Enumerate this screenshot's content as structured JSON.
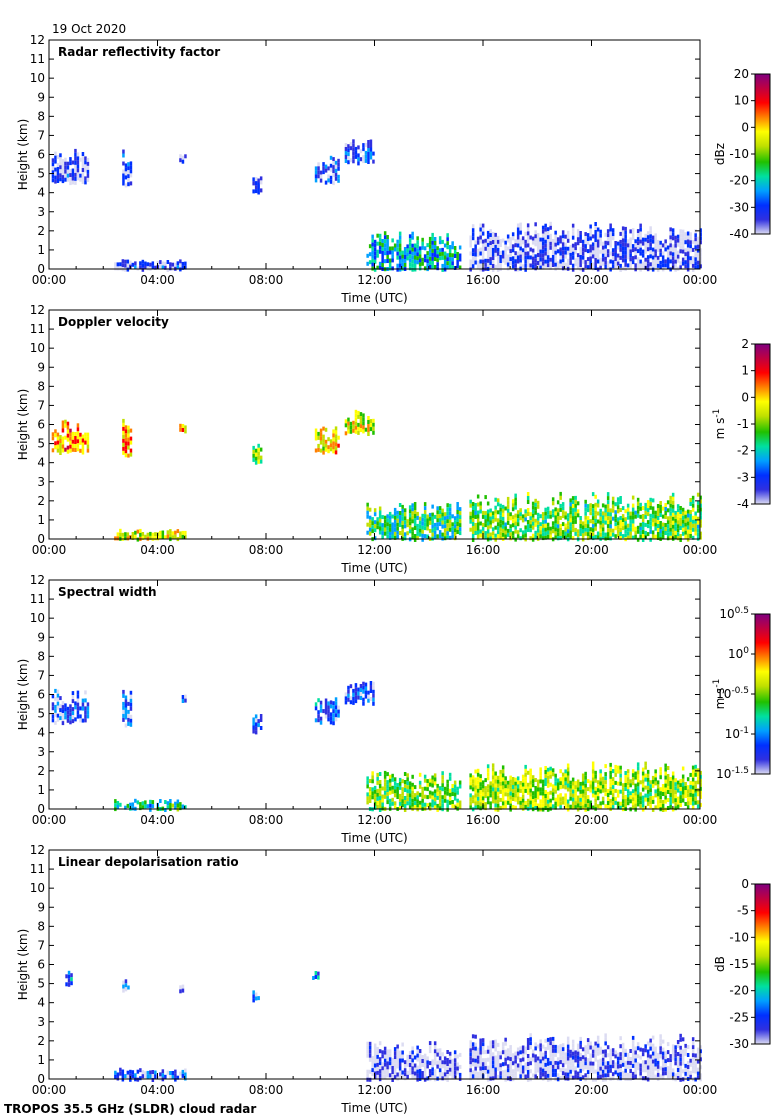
{
  "date_label": "19 Oct 2020",
  "footer": "TROPOS 35.5 GHz (SLDR) cloud radar",
  "chart_data": [
    {
      "type": "heatmap",
      "title": "Radar reflectivity factor",
      "xlabel": "Time (UTC)",
      "ylabel": "Height (km)",
      "xticks": [
        "00:00",
        "04:00",
        "08:00",
        "12:00",
        "16:00",
        "20:00",
        "00:00"
      ],
      "xlim_hours": [
        0,
        24
      ],
      "ylim": [
        0,
        12
      ],
      "yticks": [
        "0",
        "1",
        "2",
        "3",
        "4",
        "5",
        "6",
        "7",
        "8",
        "9",
        "10",
        "11",
        "12"
      ],
      "colorbar": {
        "label": "dBz",
        "range": [
          -40,
          20
        ],
        "ticks": [
          "20",
          "10",
          "0",
          "-10",
          "-20",
          "-30",
          "-40"
        ]
      },
      "colormap": [
        "#dcdcf2",
        "#3030e0",
        "#0030ff",
        "#00a0ff",
        "#00e0a0",
        "#20c000",
        "#c0e000",
        "#ffff00",
        "#ff8000",
        "#ff0000",
        "#c00040",
        "#800080"
      ],
      "echoes": [
        {
          "t": [
            0.1,
            1.4
          ],
          "h": [
            4.6,
            6.3
          ],
          "v": -33
        },
        {
          "t": [
            2.7,
            3.0
          ],
          "h": [
            4.4,
            6.3
          ],
          "v": -32
        },
        {
          "t": [
            4.8,
            5.0
          ],
          "h": [
            5.7,
            6.1
          ],
          "v": -33
        },
        {
          "t": [
            7.5,
            7.8
          ],
          "h": [
            4.1,
            5.2
          ],
          "v": -30
        },
        {
          "t": [
            9.8,
            10.7
          ],
          "h": [
            4.6,
            6.0
          ],
          "v": -30
        },
        {
          "t": [
            10.9,
            12.0
          ],
          "h": [
            5.6,
            6.8
          ],
          "v": -30
        },
        {
          "t": [
            2.4,
            5.0
          ],
          "h": [
            0.05,
            0.55
          ],
          "v": -32
        },
        {
          "t": [
            11.7,
            15.2
          ],
          "h": [
            0.05,
            2.0
          ],
          "v": -20
        },
        {
          "t": [
            15.5,
            24.0
          ],
          "h": [
            0.05,
            2.5
          ],
          "v": -34
        }
      ]
    },
    {
      "type": "heatmap",
      "title": "Doppler velocity",
      "xlabel": "Time (UTC)",
      "ylabel": "Height (km)",
      "xticks": [
        "00:00",
        "04:00",
        "08:00",
        "12:00",
        "16:00",
        "20:00",
        "00:00"
      ],
      "xlim_hours": [
        0,
        24
      ],
      "ylim": [
        0,
        12
      ],
      "yticks": [
        "0",
        "1",
        "2",
        "3",
        "4",
        "5",
        "6",
        "7",
        "8",
        "9",
        "10",
        "11",
        "12"
      ],
      "colorbar": {
        "label": "m s-1",
        "range": [
          -4,
          2
        ],
        "ticks": [
          "2",
          "1",
          "0",
          "-1",
          "-2",
          "-3",
          "-4"
        ]
      },
      "colormap": [
        "#dcdcf2",
        "#3030e0",
        "#0030ff",
        "#00a0ff",
        "#00e0a0",
        "#20c000",
        "#c0e000",
        "#ffff00",
        "#ff8000",
        "#ff0000",
        "#c00040",
        "#800080"
      ],
      "echoes": [
        {
          "t": [
            0.1,
            1.4
          ],
          "h": [
            4.6,
            6.3
          ],
          "v": 0.2
        },
        {
          "t": [
            2.7,
            3.0
          ],
          "h": [
            4.4,
            6.3
          ],
          "v": 0.0
        },
        {
          "t": [
            4.8,
            5.0
          ],
          "h": [
            5.7,
            6.1
          ],
          "v": 0.1
        },
        {
          "t": [
            7.5,
            7.8
          ],
          "h": [
            4.1,
            5.2
          ],
          "v": -1.0
        },
        {
          "t": [
            9.8,
            10.7
          ],
          "h": [
            4.6,
            6.0
          ],
          "v": -0.3
        },
        {
          "t": [
            10.9,
            12.0
          ],
          "h": [
            5.6,
            6.8
          ],
          "v": -0.6
        },
        {
          "t": [
            2.4,
            5.0
          ],
          "h": [
            0.05,
            0.55
          ],
          "v": -0.5
        },
        {
          "t": [
            11.7,
            15.2
          ],
          "h": [
            0.05,
            2.0
          ],
          "v": -1.5
        },
        {
          "t": [
            15.5,
            24.0
          ],
          "h": [
            0.05,
            2.5
          ],
          "v": -1.2
        }
      ]
    },
    {
      "type": "heatmap",
      "title": "Spectral width",
      "xlabel": "Time (UTC)",
      "ylabel": "Height (km)",
      "xticks": [
        "00:00",
        "04:00",
        "08:00",
        "12:00",
        "16:00",
        "20:00",
        "00:00"
      ],
      "xlim_hours": [
        0,
        24
      ],
      "ylim": [
        0,
        12
      ],
      "yticks": [
        "0",
        "1",
        "2",
        "3",
        "4",
        "5",
        "6",
        "7",
        "8",
        "9",
        "10",
        "11",
        "12"
      ],
      "colorbar": {
        "label": "m s-1",
        "range": [
          -1.5,
          0.5
        ],
        "log_base": 10,
        "ticks": [
          "10^0.5",
          "10^0",
          "10^-0.5",
          "10^-1",
          "10^-1.5"
        ]
      },
      "colormap": [
        "#dcdcf2",
        "#3030e0",
        "#0030ff",
        "#00a0ff",
        "#00e0a0",
        "#20c000",
        "#c0e000",
        "#ffff00",
        "#ff8000",
        "#ff0000",
        "#c00040",
        "#800080"
      ],
      "echoes": [
        {
          "t": [
            0.1,
            1.4
          ],
          "h": [
            4.6,
            6.3
          ],
          "v": -1.15
        },
        {
          "t": [
            2.7,
            3.0
          ],
          "h": [
            4.4,
            6.3
          ],
          "v": -1.15
        },
        {
          "t": [
            4.8,
            5.0
          ],
          "h": [
            5.7,
            6.1
          ],
          "v": -1.15
        },
        {
          "t": [
            7.5,
            7.8
          ],
          "h": [
            4.1,
            5.2
          ],
          "v": -1.1
        },
        {
          "t": [
            9.8,
            10.7
          ],
          "h": [
            4.6,
            6.0
          ],
          "v": -1.1
        },
        {
          "t": [
            10.9,
            12.0
          ],
          "h": [
            5.6,
            6.8
          ],
          "v": -1.15
        },
        {
          "t": [
            2.4,
            5.0
          ],
          "h": [
            0.05,
            0.55
          ],
          "v": -0.75
        },
        {
          "t": [
            11.7,
            15.2
          ],
          "h": [
            0.05,
            2.0
          ],
          "v": -0.55
        },
        {
          "t": [
            15.5,
            24.0
          ],
          "h": [
            0.05,
            2.5
          ],
          "v": -0.45
        }
      ]
    },
    {
      "type": "heatmap",
      "title": "Linear depolarisation ratio",
      "xlabel": "Time (UTC)",
      "ylabel": "Height (km)",
      "xticks": [
        "00:00",
        "04:00",
        "08:00",
        "12:00",
        "16:00",
        "20:00",
        "00:00"
      ],
      "xlim_hours": [
        0,
        24
      ],
      "ylim": [
        0,
        12
      ],
      "yticks": [
        "0",
        "1",
        "2",
        "3",
        "4",
        "5",
        "6",
        "7",
        "8",
        "9",
        "10",
        "11",
        "12"
      ],
      "colorbar": {
        "label": "dB",
        "range": [
          -30,
          0
        ],
        "ticks": [
          "0",
          "-5",
          "-10",
          "-15",
          "-20",
          "-25",
          "-30"
        ]
      },
      "colormap": [
        "#dcdcf2",
        "#3030e0",
        "#0030ff",
        "#00a0ff",
        "#00e0a0",
        "#20c000",
        "#c0e000",
        "#ffff00",
        "#ff8000",
        "#ff0000",
        "#c00040",
        "#800080"
      ],
      "echoes": [
        {
          "t": [
            0.6,
            0.8
          ],
          "h": [
            5.0,
            5.8
          ],
          "v": -24
        },
        {
          "t": [
            2.7,
            2.9
          ],
          "h": [
            4.6,
            5.4
          ],
          "v": -24
        },
        {
          "t": [
            4.8,
            4.9
          ],
          "h": [
            4.7,
            5.0
          ],
          "v": -24
        },
        {
          "t": [
            7.5,
            7.7
          ],
          "h": [
            4.2,
            4.8
          ],
          "v": -24
        },
        {
          "t": [
            9.7,
            9.9
          ],
          "h": [
            5.3,
            5.7
          ],
          "v": -22
        },
        {
          "t": [
            2.4,
            5.0
          ],
          "h": [
            0.05,
            0.6
          ],
          "v": -25
        },
        {
          "t": [
            11.7,
            15.2
          ],
          "h": [
            0.05,
            2.0
          ],
          "v": -28
        },
        {
          "t": [
            15.5,
            24.0
          ],
          "h": [
            0.05,
            2.4
          ],
          "v": -28
        }
      ]
    }
  ]
}
